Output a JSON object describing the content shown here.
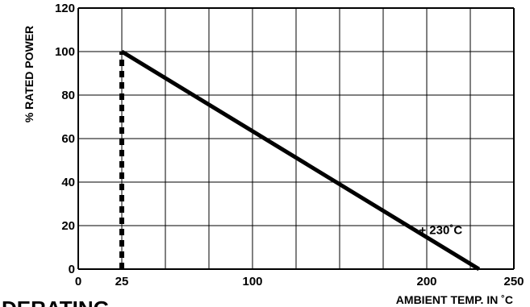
{
  "chart_data": {
    "type": "line",
    "title": "",
    "xlabel": "AMBIENT TEMP. IN ˚C",
    "ylabel": "% RATED POWER",
    "xlim": [
      0,
      250
    ],
    "ylim": [
      0,
      120
    ],
    "x_grid": [
      0,
      25,
      50,
      75,
      100,
      125,
      150,
      175,
      200,
      225,
      250
    ],
    "y_grid": [
      0,
      20,
      40,
      60,
      80,
      100,
      120
    ],
    "x_tick_labels": [
      {
        "value": 0,
        "label": "0"
      },
      {
        "value": 25,
        "label": "25"
      },
      {
        "value": 100,
        "label": "100"
      },
      {
        "value": 200,
        "label": "200"
      },
      {
        "value": 250,
        "label": "250"
      }
    ],
    "y_tick_labels": [
      {
        "value": 0,
        "label": "0"
      },
      {
        "value": 20,
        "label": "20"
      },
      {
        "value": 40,
        "label": "40"
      },
      {
        "value": 60,
        "label": "60"
      },
      {
        "value": 80,
        "label": "80"
      },
      {
        "value": 100,
        "label": "100"
      },
      {
        "value": 120,
        "label": "120"
      }
    ],
    "grid": true,
    "series": [
      {
        "style": "solid",
        "x": [
          25,
          230
        ],
        "y": [
          100,
          0
        ]
      },
      {
        "style": "dashed",
        "x": [
          25,
          25
        ],
        "y": [
          0,
          100
        ]
      }
    ],
    "annotations": [
      {
        "text": "+ 230˚C",
        "x": 208,
        "y": 18
      }
    ]
  },
  "heading": "DERATING",
  "colors": {
    "line": "#000000",
    "grid": "#000000",
    "background": "#ffffff"
  }
}
